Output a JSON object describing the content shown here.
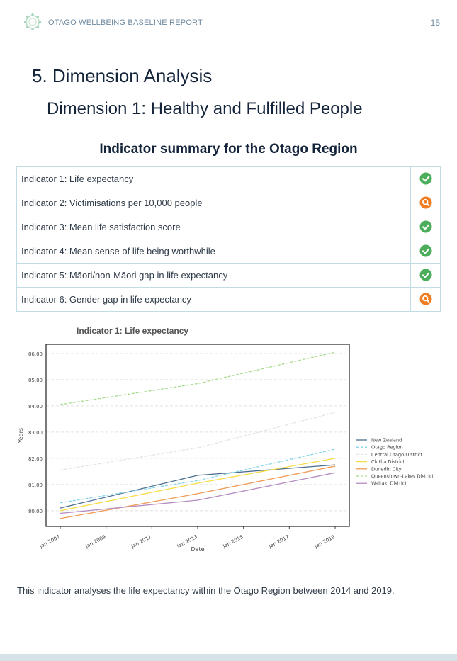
{
  "header": {
    "report_title": "OTAGO WELLBEING BASELINE REPORT",
    "page_number": "15"
  },
  "section_heading": "5. Dimension Analysis",
  "sub_heading": "Dimension 1: Healthy and Fulfilled People",
  "summary_title": "Indicator summary for the Otago Region",
  "indicators": [
    {
      "label": "Indicator 1: Life expectancy",
      "status_icon": "check-icon"
    },
    {
      "label": "Indicator 2: Victimisations per 10,000 people",
      "status_icon": "magnifier-icon"
    },
    {
      "label": "Indicator 3: Mean life satisfaction score",
      "status_icon": "check-icon"
    },
    {
      "label": "Indicator 4: Mean sense of life being worthwhile",
      "status_icon": "check-icon"
    },
    {
      "label": "Indicator 5: Māori/non-Māori gap in life expectancy",
      "status_icon": "check-icon"
    },
    {
      "label": "Indicator 6: Gender gap in life expectancy",
      "status_icon": "magnifier-icon"
    }
  ],
  "colors": {
    "check": "#4cae5a",
    "magnifier": "#f07d22",
    "table_border": "#c3dbe4",
    "header_rule": "#7d99b0"
  },
  "chart_title": "Indicator 1: Life expectancy",
  "chart_data": {
    "type": "line",
    "xlabel": "Date",
    "ylabel": "Years",
    "x_ticks": [
      "Jan 2007",
      "Jan 2009",
      "Jan 2011",
      "Jan 2013",
      "Jan 2015",
      "Jan 2017",
      "Jan 2019"
    ],
    "x_range": [
      "2007-01",
      "2019-01"
    ],
    "x": [
      "2007-01",
      "2013-01",
      "2019-01"
    ],
    "y_ticks": [
      "80.00",
      "81.00",
      "82.00",
      "83.00",
      "84.00",
      "85.00",
      "86.00"
    ],
    "ylim": [
      79.4,
      86.35
    ],
    "grid": true,
    "legend": "right",
    "series": [
      {
        "name": "New Zealand",
        "color": "#4c6e91",
        "dashed": false,
        "values": [
          80.1,
          81.35,
          81.75
        ]
      },
      {
        "name": "Otago Region",
        "color": "#86d4e8",
        "dashed": true,
        "values": [
          80.3,
          81.15,
          82.35
        ]
      },
      {
        "name": "Central Otago District",
        "color": "#e3e3e3",
        "dashed": true,
        "values": [
          81.55,
          82.4,
          83.75
        ]
      },
      {
        "name": "Clutha District",
        "color": "#f6dd48",
        "dashed": false,
        "values": [
          80.0,
          81.05,
          82.0
        ]
      },
      {
        "name": "Dunedin City",
        "color": "#f09a55",
        "dashed": false,
        "values": [
          79.7,
          80.65,
          81.7
        ]
      },
      {
        "name": "Queenstown-Lakes District",
        "color": "#a8db8e",
        "dashed": true,
        "values": [
          84.05,
          84.85,
          86.05
        ]
      },
      {
        "name": "Waitaki District",
        "color": "#b58cc2",
        "dashed": false,
        "values": [
          79.9,
          80.4,
          81.45
        ]
      }
    ]
  },
  "body_text": "This indicator analyses the life expectancy within the Otago Region between 2014 and 2019."
}
